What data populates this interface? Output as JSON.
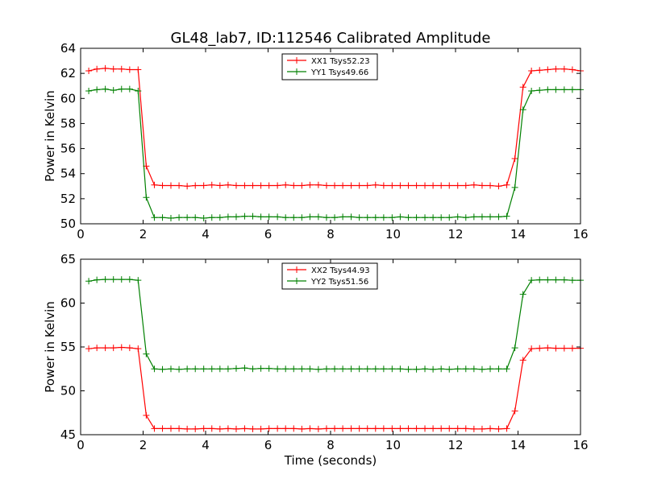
{
  "figure": {
    "title": "GL48_lab7, ID:112546 Calibrated Amplitude"
  },
  "chart_data": [
    {
      "type": "line",
      "title": "GL48_lab7, ID:112546 Calibrated Amplitude",
      "xlabel": "",
      "ylabel": "Power in Kelvin",
      "xlim": [
        0,
        16
      ],
      "ylim": [
        50,
        64
      ],
      "xticks": [
        0,
        2,
        4,
        6,
        8,
        10,
        12,
        14,
        16
      ],
      "yticks": [
        50,
        52,
        54,
        56,
        58,
        60,
        62,
        64
      ],
      "grid": false,
      "legend_position": "top-center",
      "x": [
        0.26,
        0.52,
        0.79,
        1.05,
        1.31,
        1.57,
        1.84,
        2.1,
        2.36,
        2.62,
        2.89,
        3.15,
        3.41,
        3.67,
        3.94,
        4.2,
        4.46,
        4.72,
        4.98,
        5.25,
        5.51,
        5.77,
        6.03,
        6.3,
        6.56,
        6.82,
        7.08,
        7.34,
        7.61,
        7.87,
        8.13,
        8.39,
        8.66,
        8.92,
        9.18,
        9.44,
        9.7,
        9.97,
        10.23,
        10.49,
        10.75,
        11.02,
        11.28,
        11.54,
        11.8,
        12.07,
        12.33,
        12.59,
        12.85,
        13.11,
        13.38,
        13.64,
        13.9,
        14.16,
        14.43,
        14.69,
        14.95,
        15.21,
        15.48,
        15.74,
        16.0
      ],
      "series": [
        {
          "name": "XX1 Tsys52.23",
          "color": "#ff0000",
          "values": [
            62.2,
            62.35,
            62.4,
            62.35,
            62.35,
            62.3,
            62.3,
            54.6,
            53.1,
            53.05,
            53.05,
            53.05,
            53.0,
            53.05,
            53.05,
            53.1,
            53.05,
            53.1,
            53.05,
            53.05,
            53.05,
            53.05,
            53.05,
            53.05,
            53.1,
            53.05,
            53.05,
            53.1,
            53.1,
            53.05,
            53.05,
            53.05,
            53.05,
            53.05,
            53.05,
            53.1,
            53.05,
            53.05,
            53.05,
            53.05,
            53.05,
            53.05,
            53.05,
            53.05,
            53.05,
            53.05,
            53.05,
            53.1,
            53.05,
            53.05,
            53.0,
            53.1,
            55.2,
            60.9,
            62.2,
            62.25,
            62.3,
            62.35,
            62.35,
            62.3,
            62.2
          ]
        },
        {
          "name": "YY1 Tsys49.66",
          "color": "#008000",
          "values": [
            60.6,
            60.7,
            60.75,
            60.65,
            60.75,
            60.75,
            60.6,
            52.1,
            50.5,
            50.5,
            50.45,
            50.5,
            50.5,
            50.5,
            50.45,
            50.5,
            50.5,
            50.55,
            50.55,
            50.6,
            50.6,
            50.55,
            50.55,
            50.55,
            50.5,
            50.5,
            50.5,
            50.55,
            50.55,
            50.5,
            50.5,
            50.55,
            50.55,
            50.5,
            50.5,
            50.5,
            50.5,
            50.5,
            50.55,
            50.5,
            50.5,
            50.5,
            50.5,
            50.5,
            50.5,
            50.55,
            50.5,
            50.55,
            50.55,
            50.55,
            50.55,
            50.6,
            52.9,
            59.1,
            60.6,
            60.65,
            60.7,
            60.7,
            60.7,
            60.7,
            60.7
          ]
        }
      ]
    },
    {
      "type": "line",
      "title": "",
      "xlabel": "Time (seconds)",
      "ylabel": "Power in Kelvin",
      "xlim": [
        0,
        16
      ],
      "ylim": [
        45,
        65
      ],
      "xticks": [
        0,
        2,
        4,
        6,
        8,
        10,
        12,
        14,
        16
      ],
      "yticks": [
        45,
        50,
        55,
        60,
        65
      ],
      "grid": false,
      "legend_position": "top-center",
      "x": [
        0.26,
        0.52,
        0.79,
        1.05,
        1.31,
        1.57,
        1.84,
        2.1,
        2.36,
        2.62,
        2.89,
        3.15,
        3.41,
        3.67,
        3.94,
        4.2,
        4.46,
        4.72,
        4.98,
        5.25,
        5.51,
        5.77,
        6.03,
        6.3,
        6.56,
        6.82,
        7.08,
        7.34,
        7.61,
        7.87,
        8.13,
        8.39,
        8.66,
        8.92,
        9.18,
        9.44,
        9.7,
        9.97,
        10.23,
        10.49,
        10.75,
        11.02,
        11.28,
        11.54,
        11.8,
        12.07,
        12.33,
        12.59,
        12.85,
        13.11,
        13.38,
        13.64,
        13.9,
        14.16,
        14.43,
        14.69,
        14.95,
        15.21,
        15.48,
        15.74,
        16.0
      ],
      "series": [
        {
          "name": "XX2 Tsys44.93",
          "color": "#ff0000",
          "values": [
            54.8,
            54.9,
            54.9,
            54.9,
            54.95,
            54.9,
            54.8,
            47.2,
            45.7,
            45.7,
            45.7,
            45.7,
            45.65,
            45.65,
            45.7,
            45.7,
            45.65,
            45.7,
            45.65,
            45.7,
            45.65,
            45.65,
            45.7,
            45.7,
            45.7,
            45.7,
            45.65,
            45.7,
            45.65,
            45.7,
            45.7,
            45.7,
            45.7,
            45.7,
            45.7,
            45.7,
            45.7,
            45.7,
            45.7,
            45.7,
            45.7,
            45.7,
            45.7,
            45.7,
            45.7,
            45.7,
            45.7,
            45.65,
            45.65,
            45.7,
            45.65,
            45.7,
            47.7,
            53.5,
            54.8,
            54.85,
            54.9,
            54.85,
            54.85,
            54.85,
            54.85
          ]
        },
        {
          "name": "YY2 Tsys51.56",
          "color": "#008000",
          "values": [
            62.5,
            62.65,
            62.7,
            62.7,
            62.7,
            62.7,
            62.6,
            54.2,
            52.5,
            52.45,
            52.5,
            52.45,
            52.5,
            52.5,
            52.5,
            52.5,
            52.5,
            52.5,
            52.55,
            52.6,
            52.5,
            52.55,
            52.55,
            52.5,
            52.5,
            52.5,
            52.5,
            52.5,
            52.45,
            52.5,
            52.5,
            52.5,
            52.5,
            52.5,
            52.5,
            52.5,
            52.5,
            52.5,
            52.5,
            52.45,
            52.45,
            52.5,
            52.45,
            52.5,
            52.45,
            52.5,
            52.5,
            52.5,
            52.45,
            52.5,
            52.5,
            52.5,
            54.9,
            61.0,
            62.6,
            62.65,
            62.65,
            62.65,
            62.65,
            62.6,
            62.6
          ]
        }
      ]
    }
  ]
}
